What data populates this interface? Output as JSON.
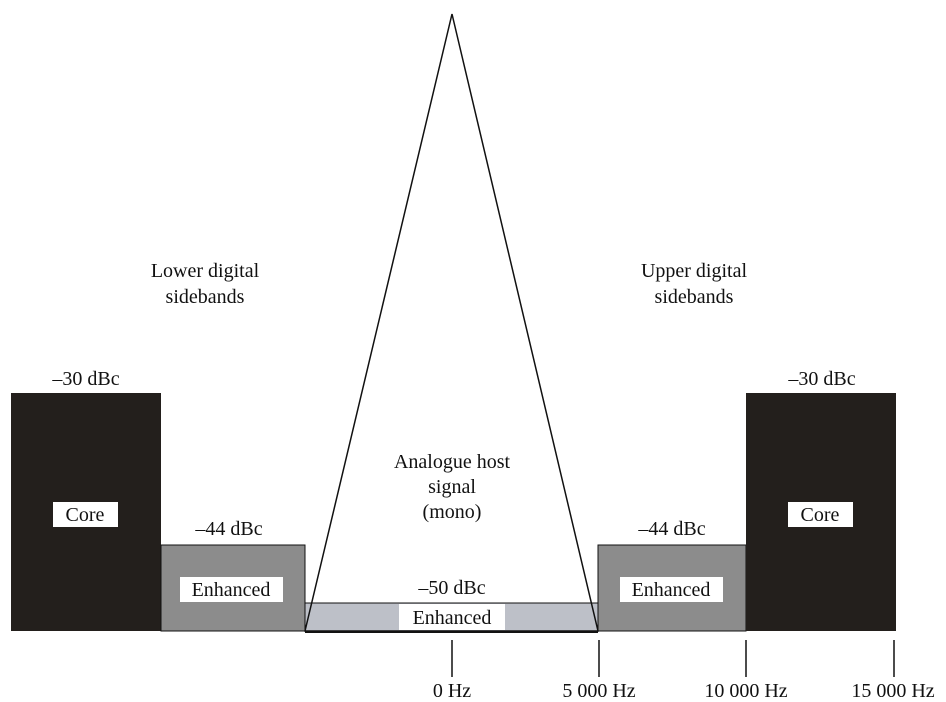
{
  "colors": {
    "core": "#231f1c",
    "enhanced": "#8c8c8c",
    "center_enhanced": "#bdc0c8",
    "label_box": "#ffffff",
    "line": "#111111"
  },
  "lower_sidebands": {
    "title_line1": "Lower digital",
    "title_line2": "sidebands",
    "core_level": "–30 dBc",
    "core_label": "Core",
    "enhanced_level": "–44 dBc",
    "enhanced_label": "Enhanced"
  },
  "upper_sidebands": {
    "title_line1": "Upper digital",
    "title_line2": "sidebands",
    "core_level": "–30 dBc",
    "core_label": "Core",
    "enhanced_level": "–44 dBc",
    "enhanced_label": "Enhanced"
  },
  "analogue_host": {
    "line1": "Analogue host",
    "line2": "signal",
    "line3": "(mono)"
  },
  "center_band": {
    "level": "–50 dBc",
    "label": "Enhanced"
  },
  "frequency_ticks": [
    "0 Hz",
    "5 000 Hz",
    "10 000 Hz",
    "15 000 Hz"
  ]
}
